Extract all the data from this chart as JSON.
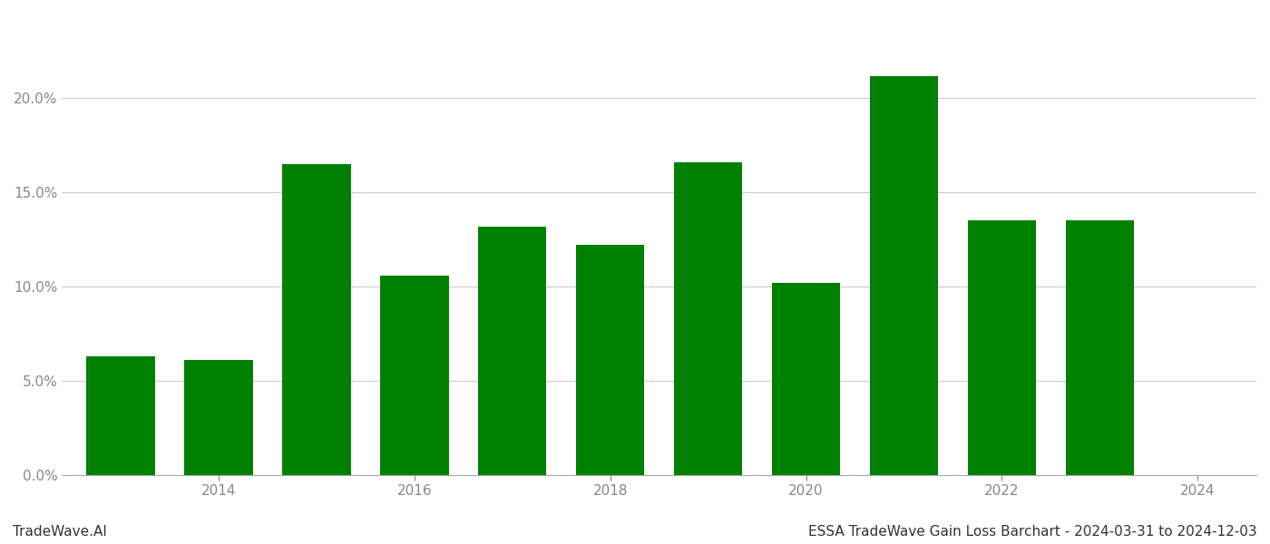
{
  "years": [
    2013,
    2014,
    2015,
    2016,
    2017,
    2018,
    2019,
    2020,
    2021,
    2022,
    2023
  ],
  "values": [
    0.063,
    0.061,
    0.165,
    0.106,
    0.132,
    0.122,
    0.166,
    0.102,
    0.212,
    0.135,
    0.135
  ],
  "bar_color": "#008000",
  "background_color": "#ffffff",
  "grid_color": "#cccccc",
  "ylabel_color": "#888888",
  "xlabel_color": "#888888",
  "title_text": "ESSA TradeWave Gain Loss Barchart - 2024-03-31 to 2024-12-03",
  "watermark_text": "TradeWave.AI",
  "title_fontsize": 11,
  "watermark_fontsize": 11,
  "ylim": [
    0,
    0.245
  ],
  "yticks": [
    0.0,
    0.05,
    0.1,
    0.15,
    0.2
  ],
  "xticks": [
    2014,
    2016,
    2018,
    2020,
    2022,
    2024
  ],
  "xlim": [
    2012.4,
    2024.6
  ],
  "bar_width": 0.7
}
